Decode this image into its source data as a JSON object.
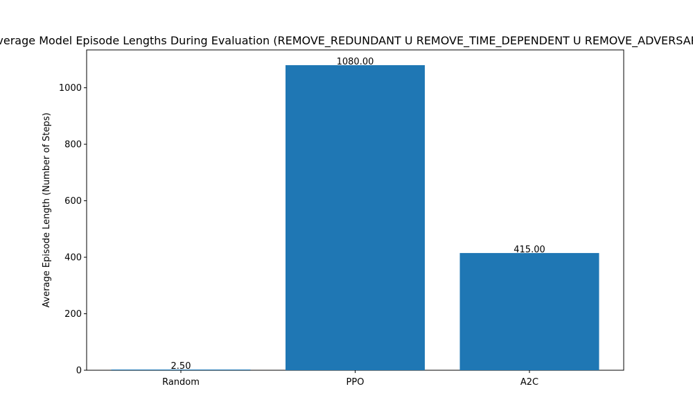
{
  "chart_data": {
    "type": "bar",
    "title": "Average Model Episode Lengths During Evaluation (REMOVE_REDUNDANT U REMOVE_TIME_DEPENDENT U REMOVE_ADVERSARIAL)",
    "xlabel": "",
    "ylabel": "Average Episode Length (Number of Steps)",
    "categories": [
      "Random",
      "PPO",
      "A2C"
    ],
    "values": [
      2.5,
      1080.0,
      415.0
    ],
    "data_labels": [
      "2.50",
      "1080.00",
      "415.00"
    ],
    "ylim": [
      0,
      1134
    ],
    "yticks": [
      0,
      200,
      400,
      600,
      800,
      1000
    ],
    "ytick_labels": [
      "0",
      "200",
      "400",
      "600",
      "800",
      "1000"
    ],
    "bar_color": "#1f77b4",
    "grid": false,
    "legend": "none"
  }
}
